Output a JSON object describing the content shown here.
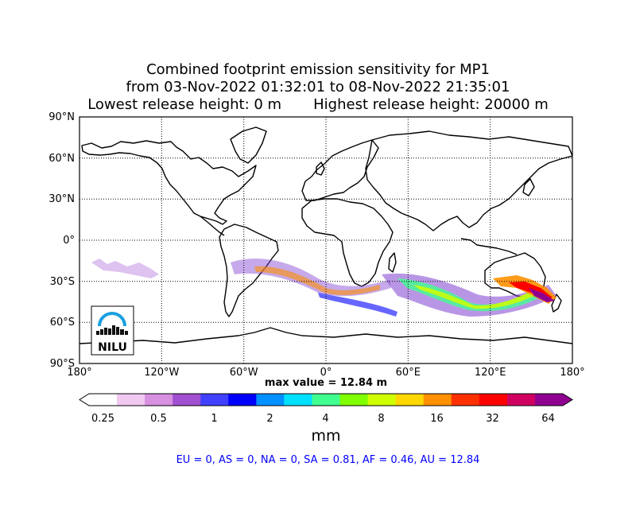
{
  "title": {
    "line1": "Combined footprint emission sensitivity for MP1",
    "line2": "from 03-Nov-2022 01:32:01 to 08-Nov-2022 21:35:01",
    "line3": "Lowest release height: 0 m       Highest release height: 20000 m"
  },
  "map": {
    "lat_labels": [
      "90°N",
      "60°N",
      "30°N",
      "0°",
      "30°S",
      "60°S",
      "90°S"
    ],
    "lon_labels": [
      "180°",
      "120°W",
      "60°W",
      "0°",
      "60°E",
      "120°E",
      "180°"
    ],
    "grid": true,
    "logo_text": "NILU"
  },
  "max_value_text": "max value = 12.84 m",
  "colorbar": {
    "tick_labels": [
      "0.25",
      "0.5",
      "1",
      "2",
      "4",
      "8",
      "16",
      "32",
      "64"
    ],
    "unit": "mm",
    "colors": [
      "#ffffff",
      "#f0c8f0",
      "#d890e0",
      "#a050d0",
      "#4040ff",
      "#0000ff",
      "#0090ff",
      "#00e0ff",
      "#40ff90",
      "#80ff00",
      "#d0ff00",
      "#ffd700",
      "#ff9000",
      "#ff3000",
      "#ff0000",
      "#d00060",
      "#900090"
    ]
  },
  "footer": "EU = 0,  AS = 0,  NA = 0,  SA = 0.81,  AF = 0.46,  AU = 12.84"
}
